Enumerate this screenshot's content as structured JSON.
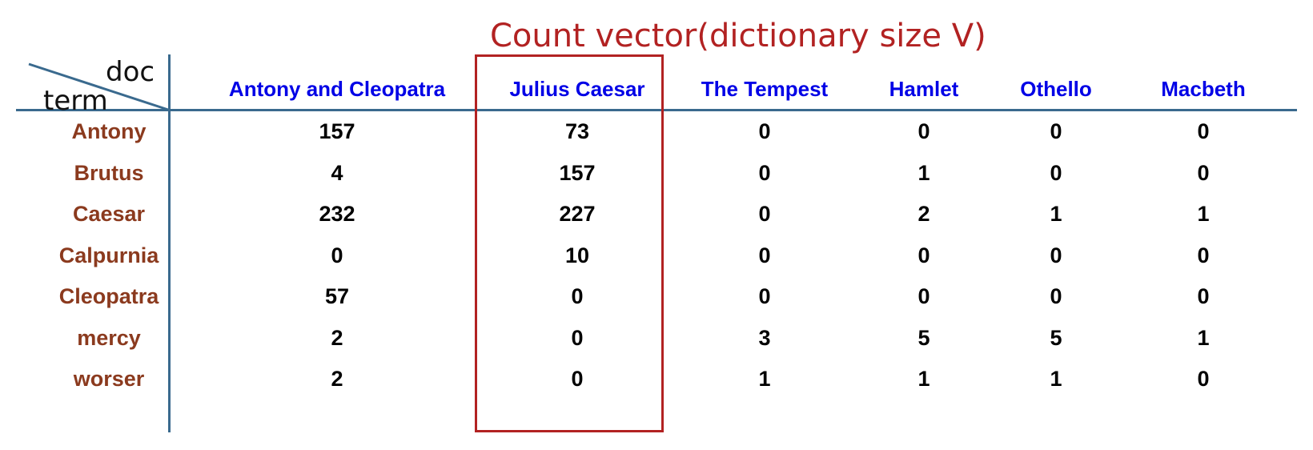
{
  "title": "Count vector(dictionary size V)",
  "corner": {
    "doc_label": "doc",
    "term_label": "term"
  },
  "colors": {
    "title": "#b22222",
    "highlight_box": "#b22222",
    "doc_headers": "#0000e6",
    "term_labels": "#8b3a1e",
    "grid_lines": "#3a6a8e",
    "values": "#000000"
  },
  "highlighted_column": "Julius Caesar",
  "table": {
    "columns": [
      "Antony and Cleopatra",
      "Julius Caesar",
      "The Tempest",
      "Hamlet",
      "Othello",
      "Macbeth"
    ],
    "rows": [
      {
        "term": "Antony",
        "values": [
          "157",
          "73",
          "0",
          "0",
          "0",
          "0"
        ]
      },
      {
        "term": "Brutus",
        "values": [
          "4",
          "157",
          "0",
          "1",
          "0",
          "0"
        ]
      },
      {
        "term": "Caesar",
        "values": [
          "232",
          "227",
          "0",
          "2",
          "1",
          "1"
        ]
      },
      {
        "term": "Calpurnia",
        "values": [
          "0",
          "10",
          "0",
          "0",
          "0",
          "0"
        ]
      },
      {
        "term": "Cleopatra",
        "values": [
          "57",
          "0",
          "0",
          "0",
          "0",
          "0"
        ]
      },
      {
        "term": "mercy",
        "values": [
          "2",
          "0",
          "3",
          "5",
          "5",
          "1"
        ]
      },
      {
        "term": "worser",
        "values": [
          "2",
          "0",
          "1",
          "1",
          "1",
          "0"
        ]
      }
    ]
  }
}
